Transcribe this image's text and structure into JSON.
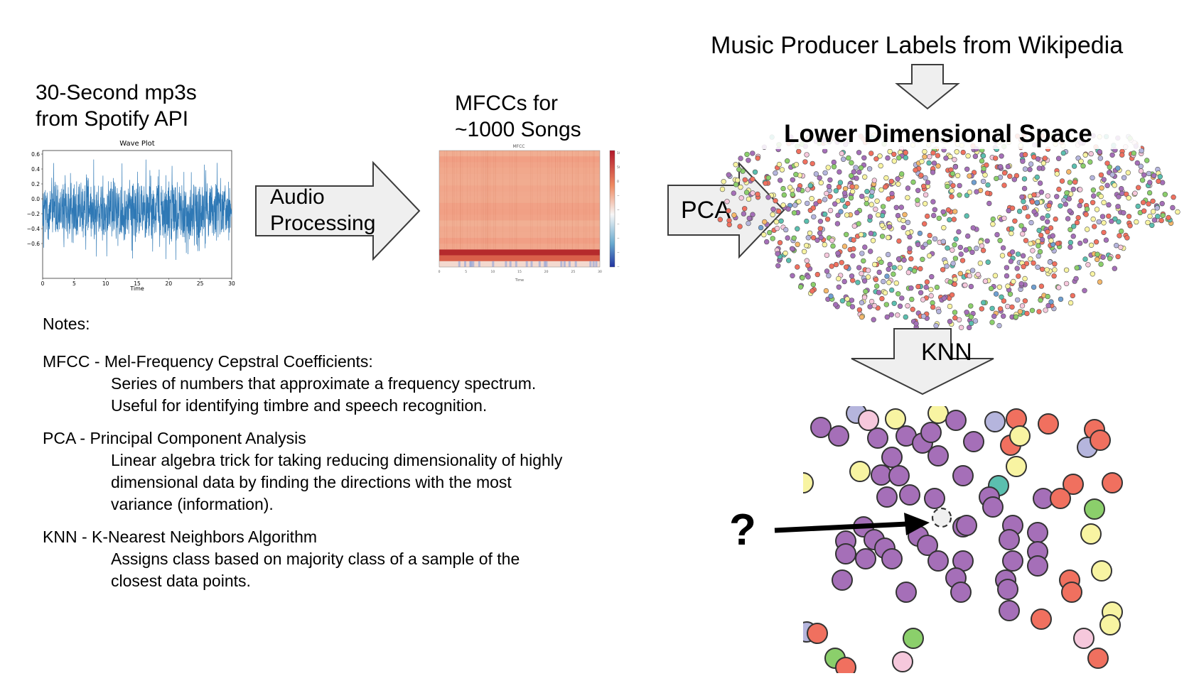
{
  "source": {
    "caption_line1": "30-Second mp3s",
    "caption_line2": "from Spotify API"
  },
  "wave_plot": {
    "title": "Wave Plot",
    "xlabel": "Time",
    "x_ticks": [
      "0",
      "5",
      "10",
      "15",
      "20",
      "25",
      "30"
    ],
    "y_ticks": [
      "0.6",
      "0.4",
      "0.2",
      "0.0",
      "−0.2",
      "−0.4",
      "−0.6"
    ],
    "color": "#2e78b5"
  },
  "arrow_audio": {
    "line1": "Audio",
    "line2": "Processing"
  },
  "mfcc": {
    "caption_line1": "MFCCs for",
    "caption_line2": "~1000 Songs",
    "plot_title": "MFCC",
    "xlabel": "Time",
    "x_ticks": [
      "0",
      "5",
      "10",
      "15",
      "20",
      "25",
      "30"
    ],
    "colorbar_ticks": [
      "100",
      "50",
      "0",
      "−50",
      "−100",
      "−150",
      "−200",
      "−250",
      "−300"
    ]
  },
  "arrow_pca": {
    "label": "PCA"
  },
  "labels_source": {
    "text": "Music Producer Labels from Wikipedia"
  },
  "scatter": {
    "title": "Lower Dimensional Space",
    "palette": [
      "#a56fb8",
      "#f0705f",
      "#f8f4a2",
      "#8bcf6b",
      "#5bbfaf",
      "#f6c8dc",
      "#b5b5dd",
      "#f5b86b",
      "#6f9fd0"
    ]
  },
  "arrow_knn": {
    "label": "KNN"
  },
  "knn_zoom": {
    "question_mark": "?",
    "query_fill": "#f0f0f0"
  },
  "notes": {
    "heading": "Notes:",
    "items": [
      {
        "term": "MFCC - Mel-Frequency Cepstral Coefficients:",
        "lines": [
          "Series of numbers that approximate a frequency spectrum.",
          "Useful for identifying timbre and speech recognition."
        ]
      },
      {
        "term": "PCA - Principal Component Analysis",
        "lines": [
          "Linear algebra trick for taking reducing dimensionality of highly",
          "dimensional data by finding the directions with the most",
          "variance (information)."
        ]
      },
      {
        "term": "KNN - K-Nearest Neighbors Algorithm",
        "lines": [
          "Assigns class based on majority class of a sample of the",
          "closest data points."
        ]
      }
    ]
  }
}
